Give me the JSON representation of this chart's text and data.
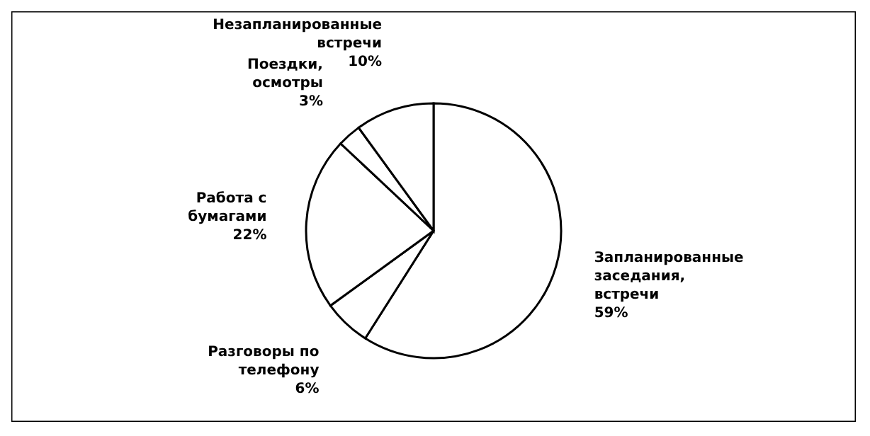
{
  "chart_data": {
    "type": "pie",
    "categories": [
      "Запланированные заседания, встречи",
      "Разговоры по телефону",
      "Работа с бумагами",
      "Поездки, осмотры",
      "Незапланированные встречи"
    ],
    "values": [
      59,
      6,
      22,
      3,
      10
    ],
    "colors": [
      "#ffffff",
      "#ffffff",
      "#ffffff",
      "#ffffff",
      "#ffffff"
    ],
    "value_labels": [
      "59%",
      "6%",
      "22%",
      "3%",
      "10%"
    ]
  }
}
